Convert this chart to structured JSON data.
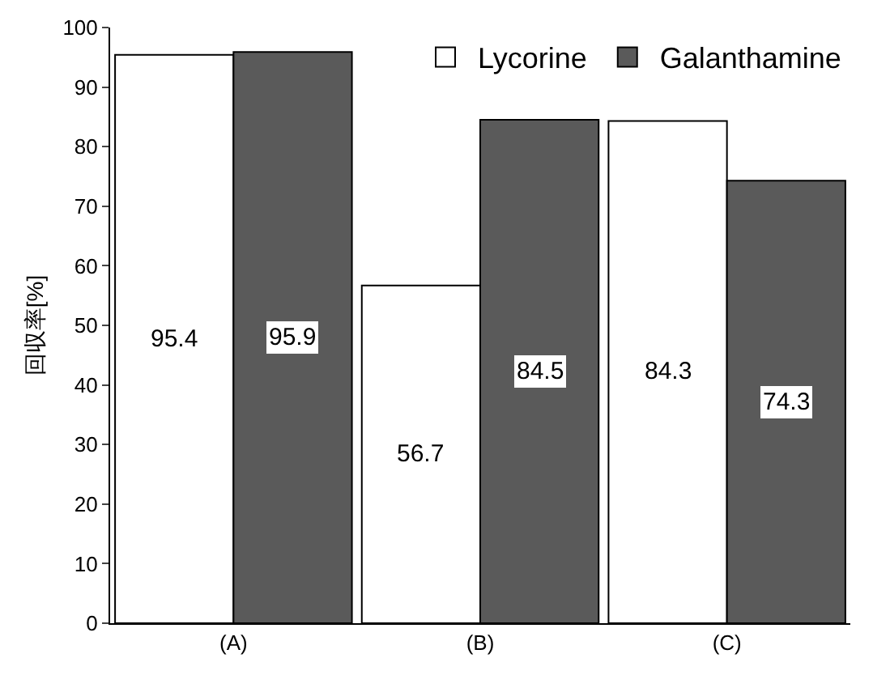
{
  "chart_data": {
    "type": "bar",
    "ylabel": "回収率[%]",
    "categories": [
      "(A)",
      "(B)",
      "(C)"
    ],
    "series": [
      {
        "name": "Lycorine",
        "color": "#ffffff",
        "values": [
          95.4,
          56.7,
          84.3
        ]
      },
      {
        "name": "Galanthamine",
        "color": "#5a5a5a",
        "values": [
          95.9,
          84.5,
          74.3
        ]
      }
    ],
    "ylim": [
      0,
      100
    ],
    "yticks": [
      0,
      10,
      20,
      30,
      40,
      50,
      60,
      70,
      80,
      90,
      100
    ],
    "grid": false,
    "legend": "top right",
    "data_labels": true
  }
}
